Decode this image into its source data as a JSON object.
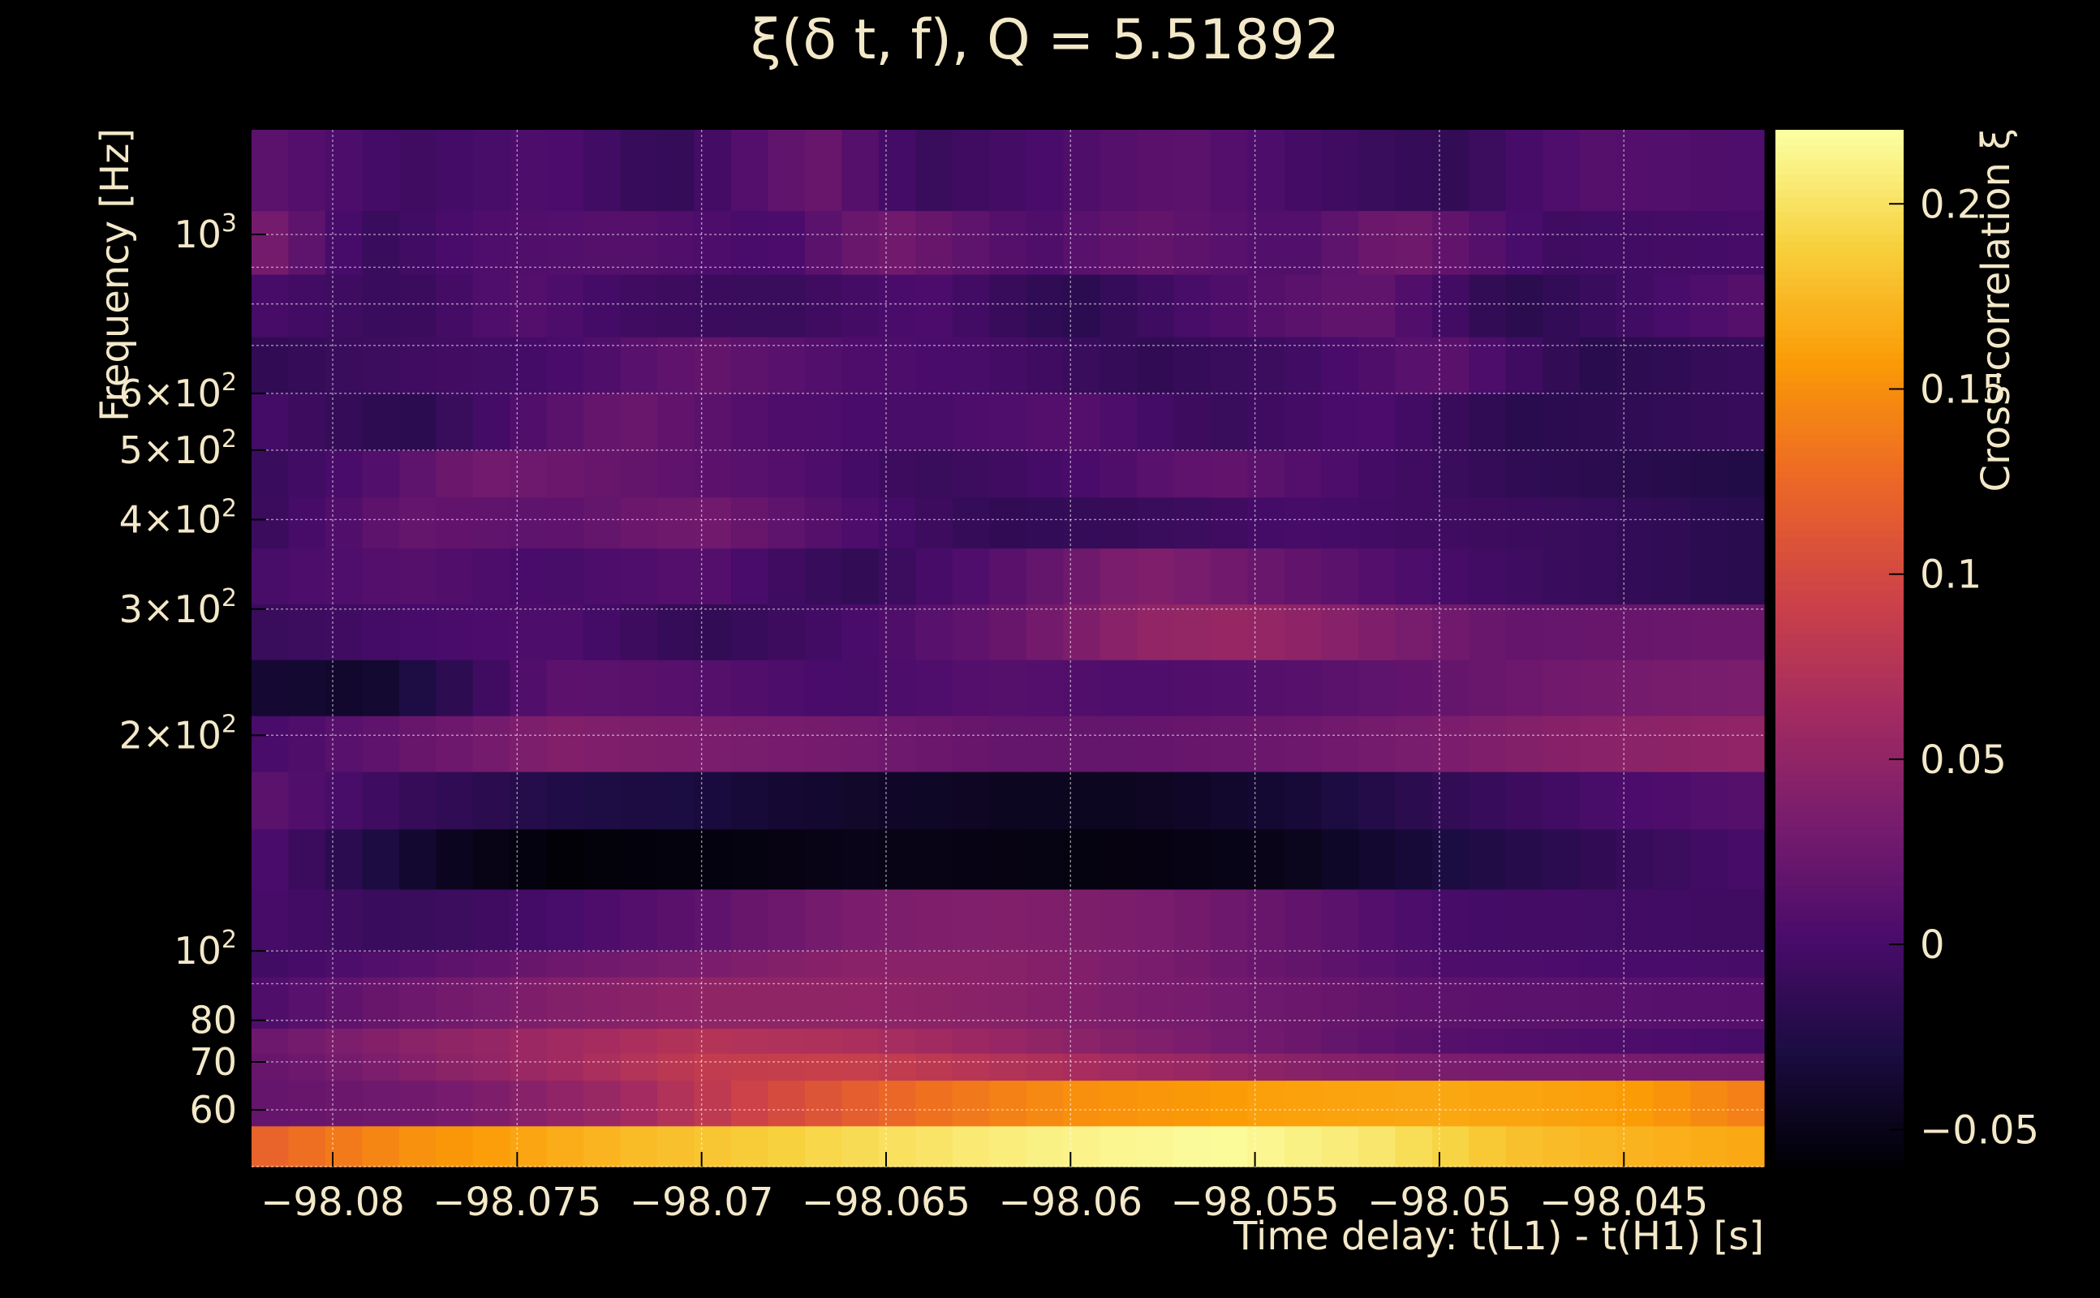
{
  "chart_data": {
    "type": "heatmap",
    "title": "ξ(δ t, f), Q = 5.51892",
    "xlabel": "Time delay: t(L1) - t(H1) [s]",
    "ylabel": "Frequency [Hz]",
    "colorbar_label": "Cross-correlation ξ",
    "x_range": [
      -98.0822,
      -98.0412
    ],
    "y_range": [
      50,
      1400
    ],
    "y_scale": "log",
    "grid": true,
    "z_range": [
      -0.06,
      0.22
    ],
    "x_ticks": [
      {
        "value": -98.08,
        "label": "−98.08"
      },
      {
        "value": -98.075,
        "label": "−98.075"
      },
      {
        "value": -98.07,
        "label": "−98.07"
      },
      {
        "value": -98.065,
        "label": "−98.065"
      },
      {
        "value": -98.06,
        "label": "−98.06"
      },
      {
        "value": -98.055,
        "label": "−98.055"
      },
      {
        "value": -98.05,
        "label": "−98.05"
      },
      {
        "value": -98.045,
        "label": "−98.045"
      }
    ],
    "y_ticks": [
      {
        "value": 60,
        "base": "60",
        "sup": ""
      },
      {
        "value": 70,
        "base": "70",
        "sup": ""
      },
      {
        "value": 80,
        "base": "80",
        "sup": ""
      },
      {
        "value": 100,
        "base": "10",
        "sup": "2"
      },
      {
        "value": 200,
        "base": "2×10",
        "sup": "2"
      },
      {
        "value": 300,
        "base": "3×10",
        "sup": "2"
      },
      {
        "value": 400,
        "base": "4×10",
        "sup": "2"
      },
      {
        "value": 500,
        "base": "5×10",
        "sup": "2"
      },
      {
        "value": 600,
        "base": "6×10",
        "sup": "2"
      },
      {
        "value": 1000,
        "base": "10",
        "sup": "3"
      }
    ],
    "colorbar_ticks": [
      {
        "value": -0.05,
        "label": "−0.05"
      },
      {
        "value": 0,
        "label": "0"
      },
      {
        "value": 0.05,
        "label": "0.05"
      },
      {
        "value": 0.1,
        "label": "0.1"
      },
      {
        "value": 0.15,
        "label": "0.15"
      },
      {
        "value": 0.2,
        "label": "0.2"
      }
    ],
    "colormap": [
      "#000004",
      "#1b0c41",
      "#4a0c6b",
      "#781c6d",
      "#a52c60",
      "#cf4446",
      "#ed6925",
      "#fb9b06",
      "#f7d13d",
      "#fcffa4"
    ],
    "bands": [
      {
        "f_low": 50,
        "f_high": 57,
        "profile": [
          [
            -98.082,
            0.12
          ],
          [
            -98.078,
            0.15
          ],
          [
            -98.072,
            0.175
          ],
          [
            -98.066,
            0.195
          ],
          [
            -98.061,
            0.21
          ],
          [
            -98.056,
            0.218
          ],
          [
            -98.052,
            0.205
          ],
          [
            -98.048,
            0.18
          ],
          [
            -98.044,
            0.17
          ],
          [
            -98.0415,
            0.165
          ]
        ]
      },
      {
        "f_low": 57,
        "f_high": 66,
        "profile": [
          [
            -98.082,
            0.02
          ],
          [
            -98.077,
            0.03
          ],
          [
            -98.072,
            0.06
          ],
          [
            -98.068,
            0.1
          ],
          [
            -98.064,
            0.13
          ],
          [
            -98.06,
            0.15
          ],
          [
            -98.055,
            0.16
          ],
          [
            -98.05,
            0.165
          ],
          [
            -98.045,
            0.16
          ],
          [
            -98.0415,
            0.14
          ]
        ]
      },
      {
        "f_low": 66,
        "f_high": 72,
        "profile": [
          [
            -98.082,
            0.02
          ],
          [
            -98.078,
            0.04
          ],
          [
            -98.074,
            0.06
          ],
          [
            -98.07,
            0.085
          ],
          [
            -98.066,
            0.09
          ],
          [
            -98.062,
            0.075
          ],
          [
            -98.058,
            0.06
          ],
          [
            -98.054,
            0.045
          ],
          [
            -98.05,
            0.035
          ],
          [
            -98.0415,
            0.03
          ]
        ]
      },
      {
        "f_low": 72,
        "f_high": 78,
        "profile": [
          [
            -98.082,
            0.025
          ],
          [
            -98.078,
            0.045
          ],
          [
            -98.074,
            0.06
          ],
          [
            -98.07,
            0.075
          ],
          [
            -98.066,
            0.07
          ],
          [
            -98.062,
            0.055
          ],
          [
            -98.058,
            0.04
          ],
          [
            -98.054,
            0.025
          ],
          [
            -98.05,
            0.01
          ],
          [
            -98.0415,
            0.0
          ]
        ]
      },
      {
        "f_low": 78,
        "f_high": 92,
        "profile": [
          [
            -98.082,
            0.005
          ],
          [
            -98.078,
            0.025
          ],
          [
            -98.074,
            0.04
          ],
          [
            -98.07,
            0.05
          ],
          [
            -98.066,
            0.05
          ],
          [
            -98.062,
            0.045
          ],
          [
            -98.058,
            0.035
          ],
          [
            -98.054,
            0.025
          ],
          [
            -98.05,
            0.015
          ],
          [
            -98.0415,
            0.01
          ]
        ]
      },
      {
        "f_low": 92,
        "f_high": 100,
        "profile": [
          [
            -98.082,
            -0.005
          ],
          [
            -98.078,
            0.01
          ],
          [
            -98.074,
            0.025
          ],
          [
            -98.07,
            0.035
          ],
          [
            -98.066,
            0.045
          ],
          [
            -98.062,
            0.045
          ],
          [
            -98.058,
            0.035
          ],
          [
            -98.054,
            0.02
          ],
          [
            -98.05,
            0.005
          ],
          [
            -98.0415,
            0.0
          ]
        ]
      },
      {
        "f_low": 100,
        "f_high": 122,
        "profile": [
          [
            -98.082,
            0.0
          ],
          [
            -98.078,
            -0.01
          ],
          [
            -98.074,
            0.0
          ],
          [
            -98.07,
            0.015
          ],
          [
            -98.066,
            0.035
          ],
          [
            -98.062,
            0.04
          ],
          [
            -98.058,
            0.035
          ],
          [
            -98.054,
            0.02
          ],
          [
            -98.05,
            0.0
          ],
          [
            -98.0415,
            -0.005
          ]
        ]
      },
      {
        "f_low": 122,
        "f_high": 148,
        "profile": [
          [
            -98.082,
            0.005
          ],
          [
            -98.08,
            -0.015
          ],
          [
            -98.077,
            -0.045
          ],
          [
            -98.074,
            -0.058
          ],
          [
            -98.07,
            -0.055
          ],
          [
            -98.066,
            -0.05
          ],
          [
            -98.062,
            -0.052
          ],
          [
            -98.058,
            -0.054
          ],
          [
            -98.054,
            -0.048
          ],
          [
            -98.05,
            -0.03
          ],
          [
            -98.046,
            -0.015
          ],
          [
            -98.0415,
            0.0
          ]
        ]
      },
      {
        "f_low": 148,
        "f_high": 178,
        "profile": [
          [
            -98.082,
            0.015
          ],
          [
            -98.078,
            -0.01
          ],
          [
            -98.074,
            -0.025
          ],
          [
            -98.07,
            -0.03
          ],
          [
            -98.066,
            -0.04
          ],
          [
            -98.062,
            -0.045
          ],
          [
            -98.058,
            -0.045
          ],
          [
            -98.054,
            -0.035
          ],
          [
            -98.05,
            -0.015
          ],
          [
            -98.046,
            0.0
          ],
          [
            -98.0415,
            0.01
          ]
        ]
      },
      {
        "f_low": 178,
        "f_high": 213,
        "profile": [
          [
            -98.082,
            0.0
          ],
          [
            -98.078,
            0.02
          ],
          [
            -98.074,
            0.04
          ],
          [
            -98.07,
            0.035
          ],
          [
            -98.066,
            0.03
          ],
          [
            -98.062,
            0.02
          ],
          [
            -98.058,
            0.02
          ],
          [
            -98.054,
            0.025
          ],
          [
            -98.05,
            0.035
          ],
          [
            -98.046,
            0.045
          ],
          [
            -98.0415,
            0.05
          ]
        ]
      },
      {
        "f_low": 213,
        "f_high": 255,
        "profile": [
          [
            -98.082,
            -0.035
          ],
          [
            -98.079,
            -0.04
          ],
          [
            -98.077,
            -0.02
          ],
          [
            -98.074,
            0.015
          ],
          [
            -98.07,
            0.01
          ],
          [
            -98.066,
            0.0
          ],
          [
            -98.062,
            0.01
          ],
          [
            -98.058,
            0.005
          ],
          [
            -98.054,
            0.01
          ],
          [
            -98.05,
            0.02
          ],
          [
            -98.046,
            0.03
          ],
          [
            -98.0415,
            0.035
          ]
        ]
      },
      {
        "f_low": 255,
        "f_high": 305,
        "profile": [
          [
            -98.082,
            -0.01
          ],
          [
            -98.078,
            0.0
          ],
          [
            -98.074,
            0.005
          ],
          [
            -98.07,
            -0.015
          ],
          [
            -98.066,
            0.0
          ],
          [
            -98.062,
            0.02
          ],
          [
            -98.058,
            0.05
          ],
          [
            -98.055,
            0.055
          ],
          [
            -98.052,
            0.04
          ],
          [
            -98.048,
            0.02
          ],
          [
            -98.0415,
            0.025
          ]
        ]
      },
      {
        "f_low": 305,
        "f_high": 365,
        "profile": [
          [
            -98.082,
            0.0
          ],
          [
            -98.078,
            0.01
          ],
          [
            -98.074,
            0.0
          ],
          [
            -98.07,
            0.01
          ],
          [
            -98.066,
            -0.015
          ],
          [
            -98.062,
            0.01
          ],
          [
            -98.058,
            0.04
          ],
          [
            -98.054,
            0.02
          ],
          [
            -98.05,
            0.0
          ],
          [
            -98.046,
            -0.01
          ],
          [
            -98.0415,
            -0.02
          ]
        ]
      },
      {
        "f_low": 365,
        "f_high": 430,
        "profile": [
          [
            -98.082,
            -0.01
          ],
          [
            -98.078,
            0.02
          ],
          [
            -98.074,
            0.015
          ],
          [
            -98.07,
            0.03
          ],
          [
            -98.066,
            0.005
          ],
          [
            -98.062,
            -0.015
          ],
          [
            -98.058,
            -0.01
          ],
          [
            -98.054,
            0.0
          ],
          [
            -98.05,
            -0.005
          ],
          [
            -98.046,
            -0.01
          ],
          [
            -98.0415,
            -0.02
          ]
        ]
      },
      {
        "f_low": 430,
        "f_high": 500,
        "profile": [
          [
            -98.082,
            -0.01
          ],
          [
            -98.079,
            0.005
          ],
          [
            -98.076,
            0.03
          ],
          [
            -98.072,
            0.02
          ],
          [
            -98.068,
            0.01
          ],
          [
            -98.064,
            -0.01
          ],
          [
            -98.06,
            0.0
          ],
          [
            -98.056,
            0.02
          ],
          [
            -98.052,
            0.0
          ],
          [
            -98.048,
            -0.015
          ],
          [
            -98.0415,
            -0.025
          ]
        ]
      },
      {
        "f_low": 500,
        "f_high": 600,
        "profile": [
          [
            -98.082,
            0.0
          ],
          [
            -98.078,
            -0.02
          ],
          [
            -98.075,
            0.005
          ],
          [
            -98.072,
            0.025
          ],
          [
            -98.068,
            0.005
          ],
          [
            -98.064,
            0.0
          ],
          [
            -98.06,
            0.01
          ],
          [
            -98.056,
            -0.01
          ],
          [
            -98.052,
            0.005
          ],
          [
            -98.048,
            -0.02
          ],
          [
            -98.0415,
            -0.01
          ]
        ]
      },
      {
        "f_low": 600,
        "f_high": 720,
        "profile": [
          [
            -98.082,
            -0.015
          ],
          [
            -98.078,
            -0.005
          ],
          [
            -98.074,
            0.0
          ],
          [
            -98.07,
            0.02
          ],
          [
            -98.066,
            0.005
          ],
          [
            -98.062,
            0.0
          ],
          [
            -98.058,
            -0.015
          ],
          [
            -98.054,
            -0.005
          ],
          [
            -98.05,
            0.015
          ],
          [
            -98.046,
            -0.02
          ],
          [
            -98.0415,
            -0.01
          ]
        ]
      },
      {
        "f_low": 720,
        "f_high": 880,
        "profile": [
          [
            -98.082,
            0.0
          ],
          [
            -98.078,
            -0.01
          ],
          [
            -98.075,
            0.01
          ],
          [
            -98.072,
            -0.005
          ],
          [
            -98.068,
            -0.01
          ],
          [
            -98.064,
            0.005
          ],
          [
            -98.06,
            -0.02
          ],
          [
            -98.056,
            0.005
          ],
          [
            -98.052,
            0.02
          ],
          [
            -98.048,
            -0.02
          ],
          [
            -98.044,
            0.0
          ],
          [
            -98.0415,
            0.01
          ]
        ]
      },
      {
        "f_low": 880,
        "f_high": 1080,
        "profile": [
          [
            -98.082,
            0.035
          ],
          [
            -98.079,
            -0.01
          ],
          [
            -98.076,
            0.005
          ],
          [
            -98.072,
            0.01
          ],
          [
            -98.068,
            0.0
          ],
          [
            -98.065,
            0.03
          ],
          [
            -98.061,
            0.005
          ],
          [
            -98.058,
            0.02
          ],
          [
            -98.054,
            0.005
          ],
          [
            -98.051,
            0.03
          ],
          [
            -98.047,
            -0.005
          ],
          [
            -98.0415,
            0.0
          ]
        ]
      },
      {
        "f_low": 1080,
        "f_high": 1400,
        "profile": [
          [
            -98.082,
            0.015
          ],
          [
            -98.078,
            -0.005
          ],
          [
            -98.074,
            0.005
          ],
          [
            -98.071,
            -0.015
          ],
          [
            -98.067,
            0.025
          ],
          [
            -98.064,
            -0.01
          ],
          [
            -98.06,
            0.005
          ],
          [
            -98.057,
            0.015
          ],
          [
            -98.054,
            0.0
          ],
          [
            -98.05,
            -0.015
          ],
          [
            -98.046,
            0.01
          ],
          [
            -98.0415,
            0.005
          ]
        ]
      }
    ]
  }
}
